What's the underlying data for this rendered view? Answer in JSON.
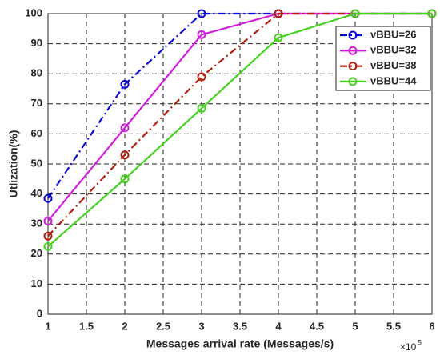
{
  "chart_data": {
    "type": "line",
    "x_label": "Messages arrival rate (Messages/s)",
    "x_multiplier": "×10",
    "x_exponent": "5",
    "y_label": "Utlization(%)",
    "x": [
      1,
      2,
      3,
      4,
      5,
      6
    ],
    "series": [
      {
        "name": "vBBU=26",
        "color": "#0a0ad2",
        "dash": "dashdot",
        "values": [
          38.5,
          76.5,
          100,
          100,
          100,
          100
        ]
      },
      {
        "name": "vBBU=32",
        "color": "#d21edc",
        "dash": "solid",
        "values": [
          31,
          62,
          93,
          100,
          100,
          100
        ]
      },
      {
        "name": "vBBU=38",
        "color": "#b41e0a",
        "dash": "dashdot",
        "values": [
          26,
          53,
          79,
          100,
          100,
          100
        ]
      },
      {
        "name": "vBBU=44",
        "color": "#46d21e",
        "dash": "solid",
        "values": [
          22.5,
          45,
          68.5,
          92,
          100,
          100
        ]
      }
    ],
    "xlim": [
      1,
      6
    ],
    "xticks": [
      1,
      1.5,
      2,
      2.5,
      3,
      3.5,
      4,
      4.5,
      5,
      5.5,
      6
    ],
    "ylim": [
      0,
      100
    ],
    "yticks": [
      0,
      10,
      20,
      30,
      40,
      50,
      60,
      70,
      80,
      90,
      100
    ],
    "grid": true,
    "legend": "top-right"
  }
}
